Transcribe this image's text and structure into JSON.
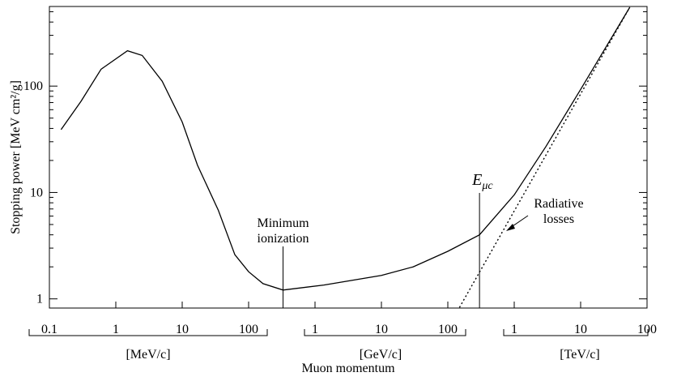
{
  "chart_data": {
    "type": "line",
    "ylabel": "Stopping power [MeV cm²/g]",
    "xlabel": "Muon momentum",
    "log_x": true,
    "log_y": true,
    "xlim": [
      0.1,
      100000000
    ],
    "ylim": [
      0.82,
      560
    ],
    "xticks": [
      0.1,
      1,
      10,
      100,
      {
        "value": 1000,
        "label": "1"
      },
      {
        "value": 10000,
        "label": "10"
      },
      {
        "value": 100000,
        "label": "100"
      },
      {
        "value": 1000000,
        "label": "1"
      },
      {
        "value": 10000000,
        "label": "10"
      },
      {
        "value": 100000000,
        "label": "100"
      }
    ],
    "x_groups": [
      "[MeV/c]",
      "[GeV/c]",
      "[TeV/c]"
    ],
    "yticks": [
      1,
      10,
      100
    ],
    "yminorticks": [
      2,
      3,
      4,
      5,
      6,
      7,
      8,
      9,
      20,
      30,
      40,
      50,
      60,
      70,
      80,
      90,
      200,
      300,
      400,
      500
    ],
    "series": [
      {
        "color": "#000000",
        "dashed": false,
        "x": [
          0.15,
          0.3,
          0.6,
          1.5,
          2.5,
          5,
          10,
          17,
          35,
          62,
          100,
          165,
          330,
          1360,
          10000,
          30000,
          100000,
          300000,
          1000000,
          3000000,
          10000000,
          55000000
        ],
        "values": [
          39,
          72,
          144,
          215,
          194,
          111,
          46,
          18,
          6.8,
          2.6,
          1.8,
          1.39,
          1.21,
          1.35,
          1.66,
          2.0,
          2.8,
          4,
          9.5,
          27,
          93,
          550
        ]
      },
      {
        "color": "#000000",
        "dashed": true,
        "x": [
          150000,
          55000000
        ],
        "values": [
          0.83,
          550
        ]
      }
    ],
    "annotations": [
      {
        "lines": [
          "Minimum",
          "ionization"
        ],
        "x": 330
      },
      {
        "text": "E",
        "sub": "μc",
        "x": 300000
      },
      {
        "lines": [
          "Radiative",
          "losses"
        ]
      }
    ]
  }
}
